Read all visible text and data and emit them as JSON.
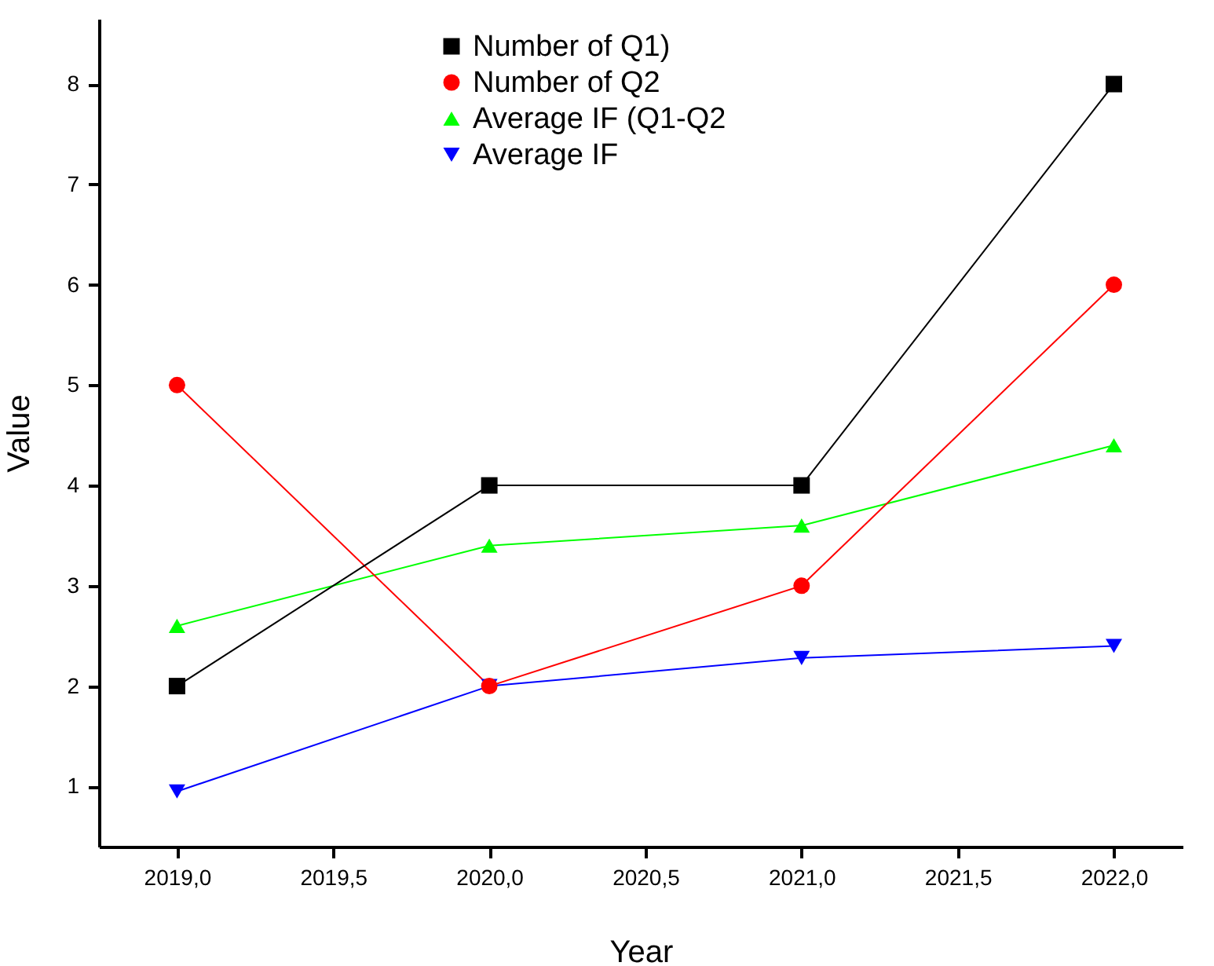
{
  "chart_data": {
    "type": "line",
    "xlabel": "Year",
    "ylabel": "Value",
    "x": [
      2019,
      2020,
      2021,
      2022
    ],
    "xlim": [
      2018.75,
      2022.22
    ],
    "xticks": [
      {
        "value": 2019,
        "label": "2019,0"
      },
      {
        "value": 2019.5,
        "label": "2019,5"
      },
      {
        "value": 2020,
        "label": "2020,0"
      },
      {
        "value": 2020.5,
        "label": "2020,5"
      },
      {
        "value": 2021,
        "label": "2021,0"
      },
      {
        "value": 2021.5,
        "label": "2021,5"
      },
      {
        "value": 2022,
        "label": "2022,0"
      }
    ],
    "ylim": [
      0.4,
      8.65
    ],
    "yticks": [
      1,
      2,
      3,
      4,
      5,
      6,
      7,
      8
    ],
    "grid": false,
    "legend": "top",
    "line_style": "solid",
    "series": [
      {
        "name": "Number of Q1)",
        "color": "#000000",
        "marker": "square",
        "values": [
          2,
          4,
          4,
          8
        ]
      },
      {
        "name": "Number of Q2",
        "color": "#ff0000",
        "marker": "circle",
        "values": [
          5,
          2,
          3,
          6
        ]
      },
      {
        "name": "Average IF (Q1-Q2",
        "color": "#00ff00",
        "marker": "triangle",
        "values": [
          2.6,
          3.4,
          3.6,
          4.4
        ]
      },
      {
        "name": "Average IF",
        "color": "#0000ff",
        "marker": "triangle-down",
        "values": [
          0.95,
          2.0,
          2.28,
          2.4
        ]
      }
    ]
  }
}
